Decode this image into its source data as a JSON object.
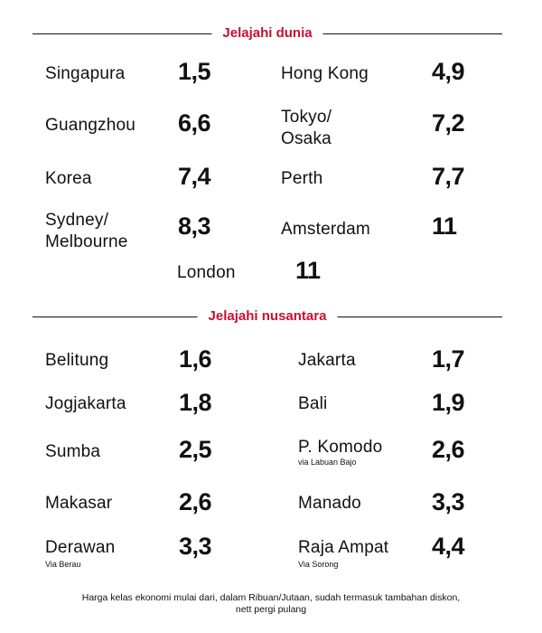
{
  "world": {
    "title": "Jelajahi dunia",
    "items": [
      {
        "name": "Singapura",
        "value": "1,5"
      },
      {
        "name": "Hong Kong",
        "value": "4,9"
      },
      {
        "name": "Guangzhou",
        "value": "6,6"
      },
      {
        "name_lines": [
          "Tokyo/",
          "Osaka"
        ],
        "value": "7,2"
      },
      {
        "name": "Korea",
        "value": "7,4"
      },
      {
        "name": "Perth",
        "value": "7,7"
      },
      {
        "name_lines": [
          "Sydney/",
          "Melbourne"
        ],
        "value": "8,3"
      },
      {
        "name": "Amsterdam",
        "value": "11"
      },
      {
        "name": "London",
        "value": "11"
      }
    ]
  },
  "domestic": {
    "title": "Jelajahi nusantara",
    "items": [
      {
        "name": "Belitung",
        "value": "1,6"
      },
      {
        "name": "Jakarta",
        "value": "1,7"
      },
      {
        "name": "Jogjakarta",
        "value": "1,8"
      },
      {
        "name": "Bali",
        "value": "1,9"
      },
      {
        "name": "Sumba",
        "value": "2,5"
      },
      {
        "name": "P. Komodo",
        "sub": "via Labuan Bajo",
        "value": "2,6"
      },
      {
        "name": "Makasar",
        "value": "2,6"
      },
      {
        "name": "Manado",
        "value": "3,3"
      },
      {
        "name": "Derawan",
        "sub": "Via Berau",
        "value": "3,3"
      },
      {
        "name": "Raja Ampat",
        "sub": "Via Sorong",
        "value": "4,4"
      }
    ]
  },
  "footnote": {
    "line1": "Harga kelas ekonomi mulai dari, dalam Ribuan/Jutaan, sudah termasuk tambahan diskon,",
    "line2": "nett pergi pulang"
  }
}
